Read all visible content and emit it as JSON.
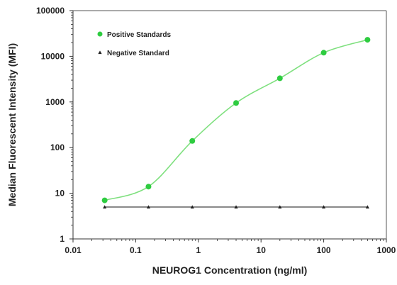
{
  "chart_data": {
    "type": "scatter",
    "xlabel": "NEUROG1 Concentration (ng/ml)",
    "ylabel": "Median Fluorescent Intensity (MFI)",
    "xscale": "log",
    "yscale": "log",
    "xlim": [
      0.01,
      1000
    ],
    "ylim": [
      1,
      100000
    ],
    "grid": false,
    "legend_position": "top-left",
    "xticks": [
      "0.01",
      "0.1",
      "1",
      "10",
      "100",
      "1000"
    ],
    "yticks": [
      "1",
      "10",
      "100",
      "1000",
      "10000",
      "100000"
    ],
    "series": [
      {
        "name": "Positive Standards",
        "color": "#2ecc40",
        "marker": "circle",
        "fit_curve": true,
        "x": [
          0.032,
          0.16,
          0.8,
          4,
          20,
          100,
          500
        ],
        "y": [
          7,
          14,
          140,
          950,
          3300,
          12000,
          23000
        ]
      },
      {
        "name": "Negative Standard",
        "color": "#222222",
        "marker": "triangle",
        "fit_curve": false,
        "x": [
          0.032,
          0.16,
          0.8,
          4,
          20,
          100,
          500
        ],
        "y": [
          5,
          5,
          5,
          5,
          5,
          5,
          5
        ]
      }
    ]
  }
}
